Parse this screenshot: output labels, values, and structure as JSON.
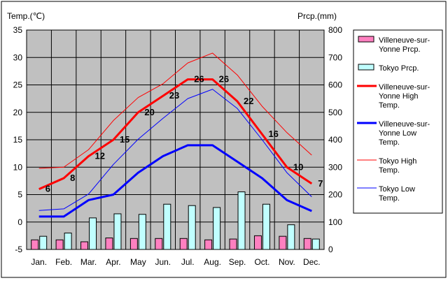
{
  "chart_data": {
    "type": "line",
    "categories": [
      "Jan.",
      "Feb.",
      "Mar.",
      "Apr.",
      "May",
      "Jun.",
      "Jul.",
      "Aug.",
      "Sep.",
      "Oct.",
      "Nov.",
      "Dec."
    ],
    "y_left": {
      "label": "Temp.(℃)",
      "min": -5,
      "max": 35,
      "ticks": [
        "35",
        "30",
        "25",
        "20",
        "15",
        "10",
        "5",
        "0",
        "-5"
      ]
    },
    "y_right": {
      "label": "Prcp.(mm)",
      "min": 0,
      "max": 800,
      "ticks": [
        "800",
        "700",
        "600",
        "500",
        "400",
        "300",
        "200",
        "100",
        "0"
      ]
    },
    "grid": true,
    "legend_position": "right",
    "bar_series": [
      {
        "name": "Villeneuve-sur-Yonne Prcp.",
        "legend_lines": [
          "Villeneuve-sur-",
          "Yonne Prcp."
        ],
        "color": "#ff80c0",
        "values": [
          35,
          35,
          28,
          42,
          40,
          40,
          40,
          35,
          38,
          50,
          48,
          40
        ]
      },
      {
        "name": "Tokyo Prcp.",
        "legend_lines": [
          "Tokyo Prcp."
        ],
        "color": "#c0ffff",
        "values": [
          48,
          60,
          115,
          130,
          128,
          165,
          160,
          153,
          210,
          165,
          90,
          38
        ]
      }
    ],
    "line_series": [
      {
        "name": "Villeneuve-sur-Yonne High Temp.",
        "legend_lines": [
          "Villeneuve-sur-",
          "Yonne High",
          "Temp."
        ],
        "color": "#ff0000",
        "width": 3,
        "labeled": true,
        "values": [
          6,
          8,
          12,
          15,
          20,
          23,
          26,
          26,
          22,
          16,
          10,
          7
        ]
      },
      {
        "name": "Villeneuve-sur-Yonne Low Temp.",
        "legend_lines": [
          "Villeneuve-sur-",
          "Yonne Low",
          "Temp."
        ],
        "color": "#0000ff",
        "width": 3,
        "labeled": false,
        "values": [
          1,
          1,
          4,
          5,
          9,
          12,
          14,
          14,
          11,
          8,
          4,
          2
        ]
      },
      {
        "name": "Tokyo High Temp.",
        "legend_lines": [
          "Tokyo High",
          "Temp."
        ],
        "color": "#ff0000",
        "width": 1,
        "labeled": false,
        "values": [
          9.8,
          10,
          13.2,
          18.5,
          22.7,
          25.2,
          29,
          30.8,
          26.8,
          21.1,
          16.3,
          12.2
        ]
      },
      {
        "name": "Tokyo Low Temp.",
        "legend_lines": [
          "Tokyo Low",
          "Temp."
        ],
        "color": "#0000ff",
        "width": 1,
        "labeled": false,
        "values": [
          2.1,
          2.4,
          5.1,
          10.5,
          15.1,
          18.9,
          22.5,
          24.2,
          20.7,
          15,
          9,
          4.6
        ]
      }
    ]
  }
}
